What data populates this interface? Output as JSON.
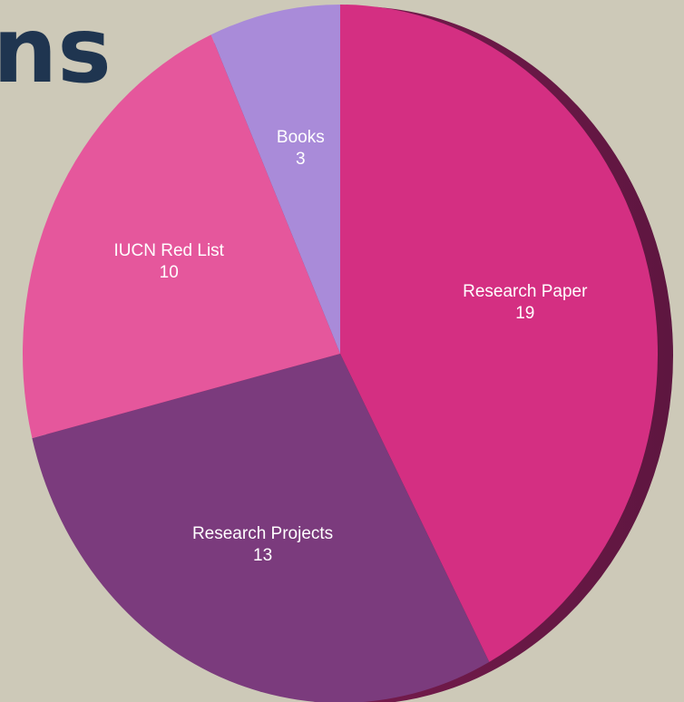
{
  "chart_data": {
    "type": "pie",
    "title": "ns",
    "categories": [
      "Research Paper",
      "Research Projects",
      "IUCN Red List",
      "Books"
    ],
    "values": [
      19,
      13,
      10,
      3
    ],
    "colors": [
      "#d42f82",
      "#7b3b7d",
      "#e5579c",
      "#a98bd9"
    ]
  }
}
